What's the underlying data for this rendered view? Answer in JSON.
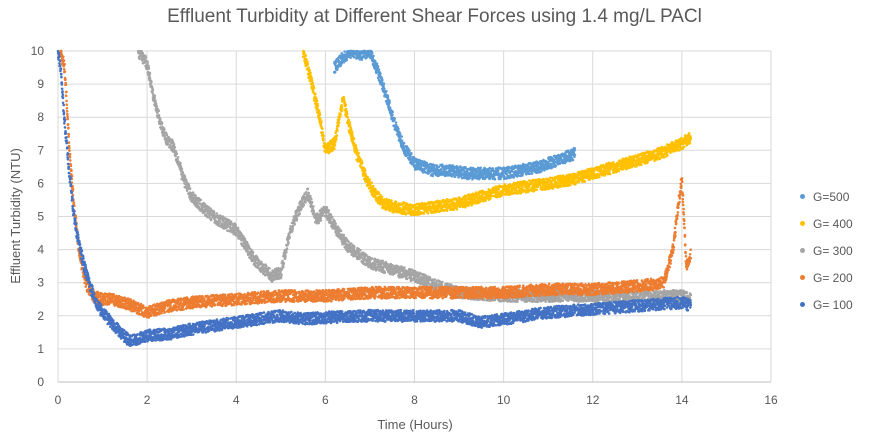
{
  "chart_data": {
    "type": "scatter",
    "title": "Effluent Turbidity at Different Shear Forces using 1.4 mg/L PACl",
    "xlabel": "Time (Hours)",
    "ylabel": "Effluent Turbidity  (NTU)",
    "xlim": [
      0,
      16
    ],
    "ylim": [
      0,
      10
    ],
    "xticks": [
      "0",
      "2",
      "4",
      "6",
      "8",
      "10",
      "12",
      "14",
      "16"
    ],
    "yticks": [
      "0",
      "1",
      "2",
      "3",
      "4",
      "5",
      "6",
      "7",
      "8",
      "9",
      "10"
    ],
    "grid": true,
    "legend_position": "right",
    "series": [
      {
        "name": "G=500",
        "color": "#5B9BD5",
        "x": [
          6.2,
          6.4,
          6.6,
          6.8,
          7.0,
          7.2,
          7.4,
          7.6,
          7.8,
          8.0,
          8.4,
          8.8,
          9.2,
          9.6,
          10.0,
          10.4,
          10.8,
          11.2,
          11.6
        ],
        "y": [
          9.5,
          9.8,
          10.0,
          9.9,
          10.0,
          9.3,
          8.5,
          7.6,
          7.0,
          6.6,
          6.4,
          6.4,
          6.3,
          6.3,
          6.3,
          6.4,
          6.5,
          6.7,
          6.9
        ]
      },
      {
        "name": "G= 400",
        "color": "#FFC000",
        "x": [
          5.5,
          5.7,
          5.9,
          6.0,
          6.2,
          6.4,
          6.5,
          6.7,
          6.9,
          7.1,
          7.3,
          7.5,
          8.0,
          8.5,
          9.0,
          9.5,
          10.0,
          10.5,
          11.0,
          11.5,
          12.0,
          12.5,
          13.0,
          13.5,
          14.0,
          14.2
        ],
        "y": [
          10.0,
          9.0,
          7.8,
          7.0,
          7.2,
          8.6,
          7.9,
          6.9,
          6.2,
          5.7,
          5.4,
          5.3,
          5.2,
          5.3,
          5.4,
          5.6,
          5.8,
          5.9,
          6.0,
          6.1,
          6.3,
          6.5,
          6.7,
          6.9,
          7.2,
          7.4
        ]
      },
      {
        "name": "G= 300",
        "color": "#A5A5A5",
        "x": [
          1.8,
          2.0,
          2.2,
          2.4,
          2.6,
          2.8,
          3.0,
          3.3,
          3.6,
          4.0,
          4.4,
          4.8,
          5.0,
          5.2,
          5.4,
          5.6,
          5.8,
          6.0,
          6.2,
          6.5,
          7.0,
          7.5,
          8.0,
          8.5,
          9.0,
          10.0,
          11.0,
          12.0,
          13.0,
          14.0,
          14.2
        ],
        "y": [
          10.0,
          9.6,
          8.3,
          7.4,
          7.1,
          6.2,
          5.6,
          5.2,
          4.9,
          4.6,
          3.7,
          3.2,
          3.3,
          4.5,
          5.2,
          5.7,
          4.9,
          5.2,
          4.7,
          4.1,
          3.6,
          3.4,
          3.2,
          2.9,
          2.7,
          2.6,
          2.6,
          2.6,
          2.6,
          2.6,
          2.5
        ]
      },
      {
        "name": "G= 200",
        "color": "#ED7D31",
        "x": [
          0.05,
          0.15,
          0.25,
          0.35,
          0.45,
          0.55,
          0.65,
          0.8,
          1.0,
          1.2,
          1.5,
          2.0,
          2.5,
          3.0,
          4.0,
          5.0,
          6.0,
          7.0,
          8.0,
          9.0,
          10.0,
          11.0,
          12.0,
          13.0,
          13.6,
          13.8,
          14.0,
          14.1,
          14.2
        ],
        "y": [
          10.0,
          9.5,
          7.2,
          5.5,
          4.2,
          3.4,
          2.9,
          2.6,
          2.5,
          2.5,
          2.4,
          2.1,
          2.3,
          2.4,
          2.5,
          2.6,
          2.6,
          2.7,
          2.7,
          2.7,
          2.7,
          2.8,
          2.8,
          2.9,
          3.0,
          4.0,
          6.2,
          3.5,
          3.9
        ]
      },
      {
        "name": "G= 100",
        "color": "#4472C4",
        "x": [
          0.0,
          0.05,
          0.15,
          0.25,
          0.35,
          0.45,
          0.55,
          0.65,
          0.75,
          0.85,
          1.0,
          1.2,
          1.4,
          1.6,
          1.8,
          2.0,
          2.5,
          3.0,
          3.5,
          4.0,
          4.5,
          5.0,
          5.5,
          6.0,
          7.0,
          8.0,
          9.0,
          9.5,
          10.0,
          11.0,
          12.0,
          13.0,
          14.0,
          14.2
        ],
        "y": [
          10.0,
          9.6,
          7.8,
          6.4,
          5.1,
          4.3,
          3.7,
          3.2,
          2.8,
          2.4,
          2.1,
          1.8,
          1.5,
          1.25,
          1.3,
          1.4,
          1.45,
          1.6,
          1.7,
          1.8,
          1.9,
          2.0,
          1.9,
          1.95,
          2.0,
          2.0,
          2.0,
          1.8,
          1.9,
          2.1,
          2.2,
          2.3,
          2.4,
          2.3
        ]
      }
    ]
  }
}
